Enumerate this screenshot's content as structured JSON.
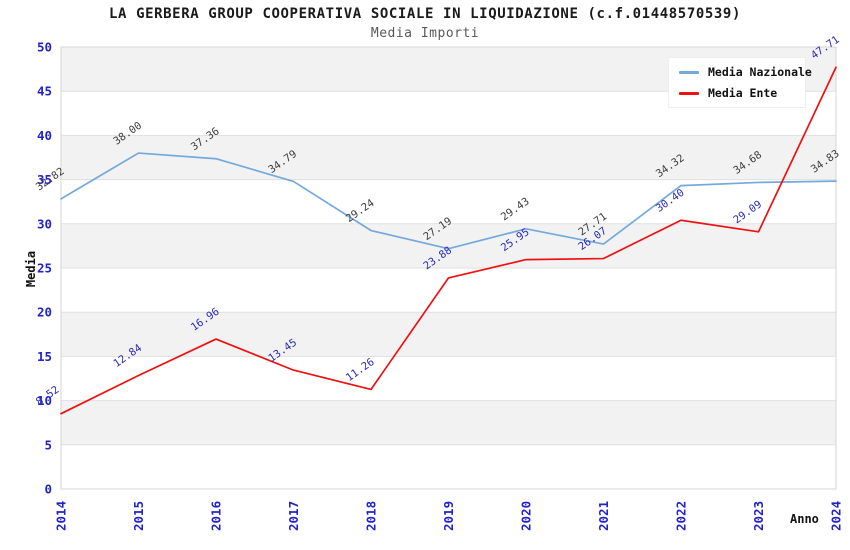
{
  "chart_data": {
    "type": "line",
    "title": "LA GERBERA GROUP COOPERATIVA SOCIALE IN LIQUIDAZIONE (c.f.01448570539)",
    "subtitle": "Media Importi",
    "xlabel": "Anno",
    "ylabel": "Media",
    "x": [
      2014,
      2015,
      2016,
      2017,
      2018,
      2019,
      2020,
      2021,
      2022,
      2023,
      2024
    ],
    "ylim": [
      0,
      50
    ],
    "ytick_step": 5,
    "yticks": [
      0,
      5,
      10,
      15,
      20,
      25,
      30,
      35,
      40,
      45,
      50
    ],
    "grid": "horizontal, alternating shaded bands",
    "legend_position": "top-right",
    "point_labels_visible": true,
    "series": [
      {
        "name": "Media Nazionale",
        "color": "#74a9dc",
        "label_color": "#3d3d3d",
        "values": [
          32.82,
          38.0,
          37.36,
          34.79,
          29.24,
          27.19,
          29.43,
          27.71,
          34.32,
          34.68,
          34.83
        ]
      },
      {
        "name": "Media Ente",
        "color": "#ee1111",
        "label_color": "#2a2ab8",
        "values": [
          8.52,
          12.84,
          16.96,
          13.45,
          11.26,
          23.88,
          25.95,
          26.07,
          30.4,
          29.09,
          47.71
        ]
      }
    ]
  },
  "style_colors": {
    "band_gray": "#f2f2f2",
    "gridline": "#e0e0e0",
    "plot_border": "#d6d6d6",
    "tick_label_blue": "#2222cc",
    "title_black": "#1a1a1a",
    "subtitle_gray": "#595959"
  }
}
